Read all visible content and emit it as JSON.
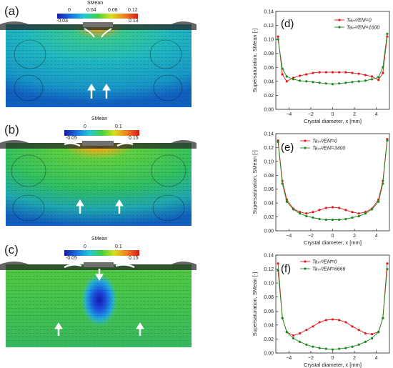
{
  "sim_panels": [
    {
      "letter": "(a)",
      "colorbar": {
        "title": "SMean",
        "top_ticks": [
          "0",
          "0.04",
          "0.08",
          "0.12"
        ],
        "bottom_ticks": [
          "-0.03",
          "0.13"
        ]
      }
    },
    {
      "letter": "(b)",
      "colorbar": {
        "title": "SMean",
        "top_ticks": [
          "0",
          "0.1"
        ],
        "bottom_ticks": [
          "-0.05",
          "0.15"
        ]
      }
    },
    {
      "letter": "(c)",
      "colorbar": {
        "title": "SMean",
        "top_ticks": [
          "0",
          "0.1"
        ],
        "bottom_ticks": [
          "-0.05",
          "0.15"
        ]
      }
    }
  ],
  "chart_data": [
    {
      "type": "line",
      "panel": "(d)",
      "xlabel": "Crystal diameter, x [mm]",
      "ylabel": "Supersaturation, SMean [-]",
      "xlim": [
        -5.2,
        5.2
      ],
      "ylim": [
        0,
        0.14
      ],
      "xticks": [
        "-4",
        "-2",
        "0",
        "2",
        "4"
      ],
      "yticks": [
        "0.00",
        "0.02",
        "0.04",
        "0.06",
        "0.08",
        "0.10",
        "0.12",
        "0.14"
      ],
      "legend_position": "top-right",
      "series": [
        {
          "name": "Taₘ²/EM=0",
          "color": "#e41a1c",
          "x": [
            -5.0,
            -4.6,
            -4.2,
            -3.6,
            -3.0,
            -2.4,
            -1.8,
            -1.2,
            -0.6,
            0.0,
            0.6,
            1.2,
            1.8,
            2.4,
            3.0,
            3.6,
            4.2,
            4.6,
            5.0
          ],
          "values": [
            0.104,
            0.05,
            0.04,
            0.045,
            0.048,
            0.05,
            0.052,
            0.053,
            0.053,
            0.053,
            0.053,
            0.053,
            0.052,
            0.051,
            0.049,
            0.047,
            0.042,
            0.052,
            0.104
          ]
        },
        {
          "name": "Taₘ²/EM=1600",
          "color": "#1a8a1a",
          "x": [
            -5.0,
            -4.6,
            -4.2,
            -3.6,
            -3.0,
            -2.4,
            -1.8,
            -1.2,
            -0.6,
            0.0,
            0.6,
            1.2,
            1.8,
            2.4,
            3.0,
            3.6,
            4.2,
            4.6,
            5.0
          ],
          "values": [
            0.1,
            0.058,
            0.047,
            0.043,
            0.041,
            0.04,
            0.039,
            0.038,
            0.037,
            0.036,
            0.037,
            0.038,
            0.039,
            0.04,
            0.041,
            0.043,
            0.046,
            0.06,
            0.108
          ]
        }
      ]
    },
    {
      "type": "line",
      "panel": "(e)",
      "xlabel": "Crystal diameter, x [mm]",
      "ylabel": "Supersaturation, SMean [-]",
      "xlim": [
        -5.2,
        5.2
      ],
      "ylim": [
        0,
        0.14
      ],
      "xticks": [
        "-4",
        "-2",
        "0",
        "2",
        "4"
      ],
      "yticks": [
        "0.00",
        "0.02",
        "0.04",
        "0.06",
        "0.08",
        "0.10",
        "0.12",
        "0.14"
      ],
      "legend_position": "top-center",
      "series": [
        {
          "name": "Taₘ²/EM=0",
          "color": "#e41a1c",
          "x": [
            -5.0,
            -4.6,
            -4.2,
            -3.6,
            -3.0,
            -2.4,
            -1.8,
            -1.2,
            -0.6,
            0.0,
            0.6,
            1.2,
            1.8,
            2.4,
            3.0,
            3.6,
            4.2,
            4.6,
            5.0
          ],
          "values": [
            0.13,
            0.072,
            0.045,
            0.032,
            0.027,
            0.025,
            0.027,
            0.03,
            0.033,
            0.034,
            0.033,
            0.03,
            0.027,
            0.025,
            0.027,
            0.032,
            0.045,
            0.072,
            0.132
          ]
        },
        {
          "name": "Taₘ²/EM=3400",
          "color": "#1a8a1a",
          "x": [
            -5.0,
            -4.6,
            -4.2,
            -3.6,
            -3.0,
            -2.4,
            -1.8,
            -1.2,
            -0.6,
            0.0,
            0.6,
            1.2,
            1.8,
            2.4,
            3.0,
            3.6,
            4.2,
            4.6,
            5.0
          ],
          "values": [
            0.128,
            0.068,
            0.042,
            0.031,
            0.025,
            0.021,
            0.019,
            0.017,
            0.016,
            0.016,
            0.016,
            0.017,
            0.019,
            0.021,
            0.025,
            0.031,
            0.042,
            0.068,
            0.13
          ]
        }
      ]
    },
    {
      "type": "line",
      "panel": "(f)",
      "xlabel": "Crystal diameter, x [mm]",
      "ylabel": "Supersaturation, SMean [-]",
      "xlim": [
        -5.2,
        5.2
      ],
      "ylim": [
        0,
        0.14
      ],
      "xticks": [
        "-4",
        "-2",
        "0",
        "2",
        "4"
      ],
      "yticks": [
        "0.00",
        "0.02",
        "0.04",
        "0.06",
        "0.08",
        "0.10",
        "0.12",
        "0.14"
      ],
      "legend_position": "top-center",
      "series": [
        {
          "name": "Taₘ²/EM=0",
          "color": "#e41a1c",
          "x": [
            -5.0,
            -4.6,
            -4.2,
            -3.6,
            -3.0,
            -2.4,
            -1.8,
            -1.2,
            -0.6,
            0.0,
            0.6,
            1.2,
            1.8,
            2.4,
            3.0,
            3.6,
            4.2,
            4.6,
            5.0
          ],
          "values": [
            0.128,
            0.05,
            0.03,
            0.025,
            0.028,
            0.033,
            0.038,
            0.044,
            0.047,
            0.048,
            0.047,
            0.044,
            0.038,
            0.033,
            0.028,
            0.027,
            0.03,
            0.05,
            0.128
          ]
        },
        {
          "name": "Taₘ²/EM=6666",
          "color": "#1a8a1a",
          "x": [
            -5.0,
            -4.6,
            -4.2,
            -3.6,
            -3.0,
            -2.4,
            -1.8,
            -1.2,
            -0.6,
            0.0,
            0.6,
            1.2,
            1.8,
            2.4,
            3.0,
            3.6,
            4.2,
            4.6,
            5.0
          ],
          "values": [
            0.118,
            0.05,
            0.03,
            0.021,
            0.016,
            0.012,
            0.009,
            0.007,
            0.006,
            0.005,
            0.006,
            0.007,
            0.009,
            0.012,
            0.016,
            0.021,
            0.03,
            0.05,
            0.12
          ]
        }
      ]
    }
  ]
}
